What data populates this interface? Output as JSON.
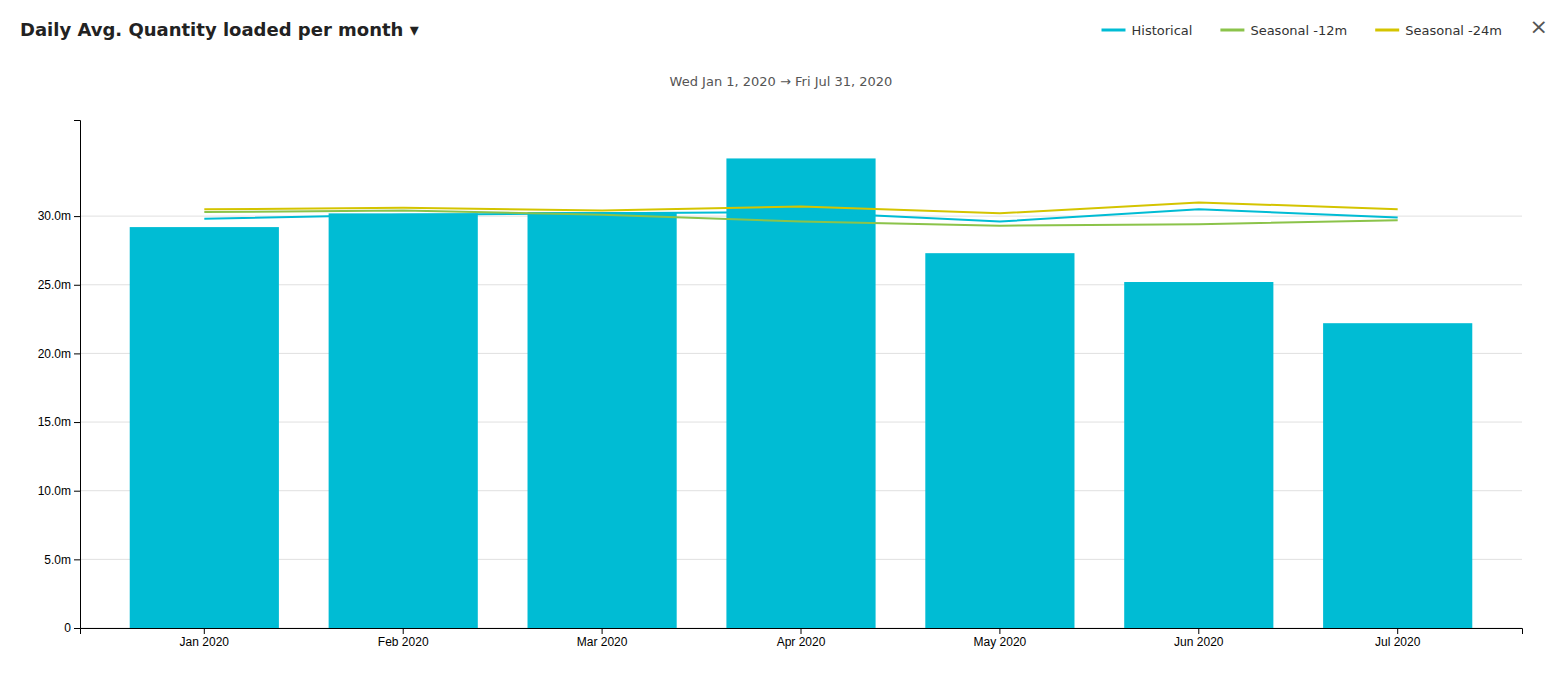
{
  "chart_data": {
    "type": "bar",
    "title": "Daily Avg. Quantity loaded per month ▾",
    "subtitle": "Wed Jan 1, 2020 → Fri Jul 31, 2020",
    "annotations": [
      "×"
    ],
    "categories": [
      "Jan 2020",
      "Feb 2020",
      "Mar 2020",
      "Apr 2020",
      "May 2020",
      "Jun 2020",
      "Jul 2020"
    ],
    "series": [
      {
        "type": "bar",
        "color": "#00bcd4",
        "values": [
          29200000,
          30200000,
          30300000,
          34200000,
          27300000,
          25200000,
          22200000
        ]
      },
      {
        "name": "Historical",
        "type": "line",
        "color": "#00bcd4",
        "values": [
          29800000,
          30100000,
          30200000,
          30300000,
          29600000,
          30500000,
          29900000
        ]
      },
      {
        "name": "Seasonal -12m",
        "type": "line",
        "color": "#8bc34a",
        "values": [
          30300000,
          30400000,
          30100000,
          29600000,
          29300000,
          29400000,
          29700000
        ]
      },
      {
        "name": "Seasonal -24m",
        "type": "line",
        "color": "#d4c400",
        "values": [
          30500000,
          30600000,
          30400000,
          30700000,
          30200000,
          31000000,
          30500000
        ]
      }
    ],
    "ylim": [
      0,
      37000000
    ],
    "yticks": [
      0,
      {
        "value": 5000000,
        "label": "5.0m"
      },
      {
        "value": 10000000,
        "label": "10.0m"
      },
      {
        "value": 15000000,
        "label": "15.0m"
      },
      {
        "value": 20000000,
        "label": "20.0m"
      },
      {
        "value": 25000000,
        "label": "25.0m"
      },
      {
        "value": 30000000,
        "label": "30.0m"
      }
    ],
    "grid": true,
    "legend": "top-right"
  }
}
